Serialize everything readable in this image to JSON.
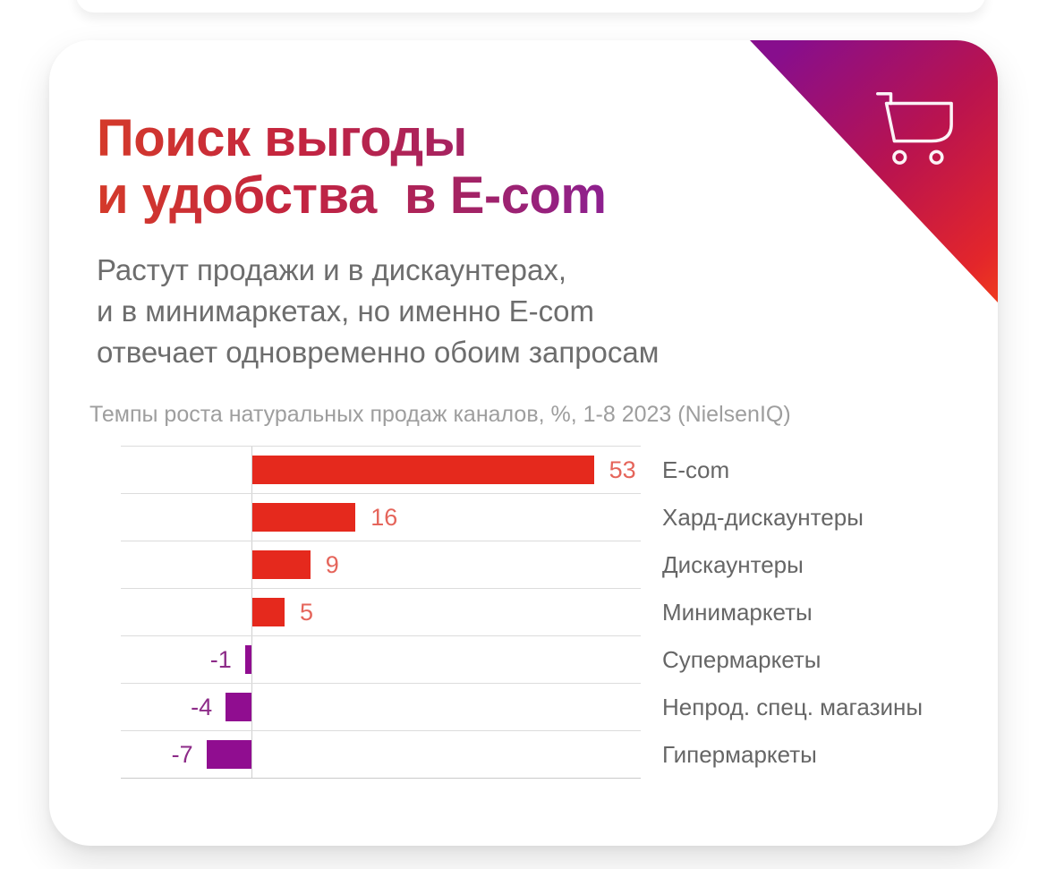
{
  "card": {
    "title": "Поиск выгоды\nи удобства  в E-com",
    "subtitle": "Растут продажи и в дискаунтерах,\nи в минимаркетах, но именно E-com\nотвечает одновременно обоим запросам",
    "corner_icon": "shopping-cart-icon",
    "title_gradient": [
      "#d43a2a",
      "#c32440",
      "#8d2090"
    ],
    "corner_gradient": [
      "#870e8d",
      "#b9134f",
      "#ef3b1d"
    ]
  },
  "chart_data": {
    "type": "bar",
    "orientation": "horizontal",
    "title": "Темпы роста натуральных продаж каналов, %, 1-8 2023 (NielsenIQ)",
    "categories": [
      "E-com",
      "Хард-дискаунтеры",
      "Дискаунтеры",
      "Минимаркеты",
      "Супермаркеты",
      "Непрод. спец. магазины",
      "Гипермаркеты"
    ],
    "values": [
      53,
      16,
      9,
      5,
      -1,
      -4,
      -7
    ],
    "xlim": [
      -20,
      60
    ],
    "grid": true,
    "legend": "none",
    "colors": {
      "positive": "#e5291d",
      "negative": "#900d90",
      "positive_label": "#e5655b",
      "negative_label": "#8d2b88",
      "category_label": "#666666",
      "gridline": "#dcdcdc"
    }
  }
}
